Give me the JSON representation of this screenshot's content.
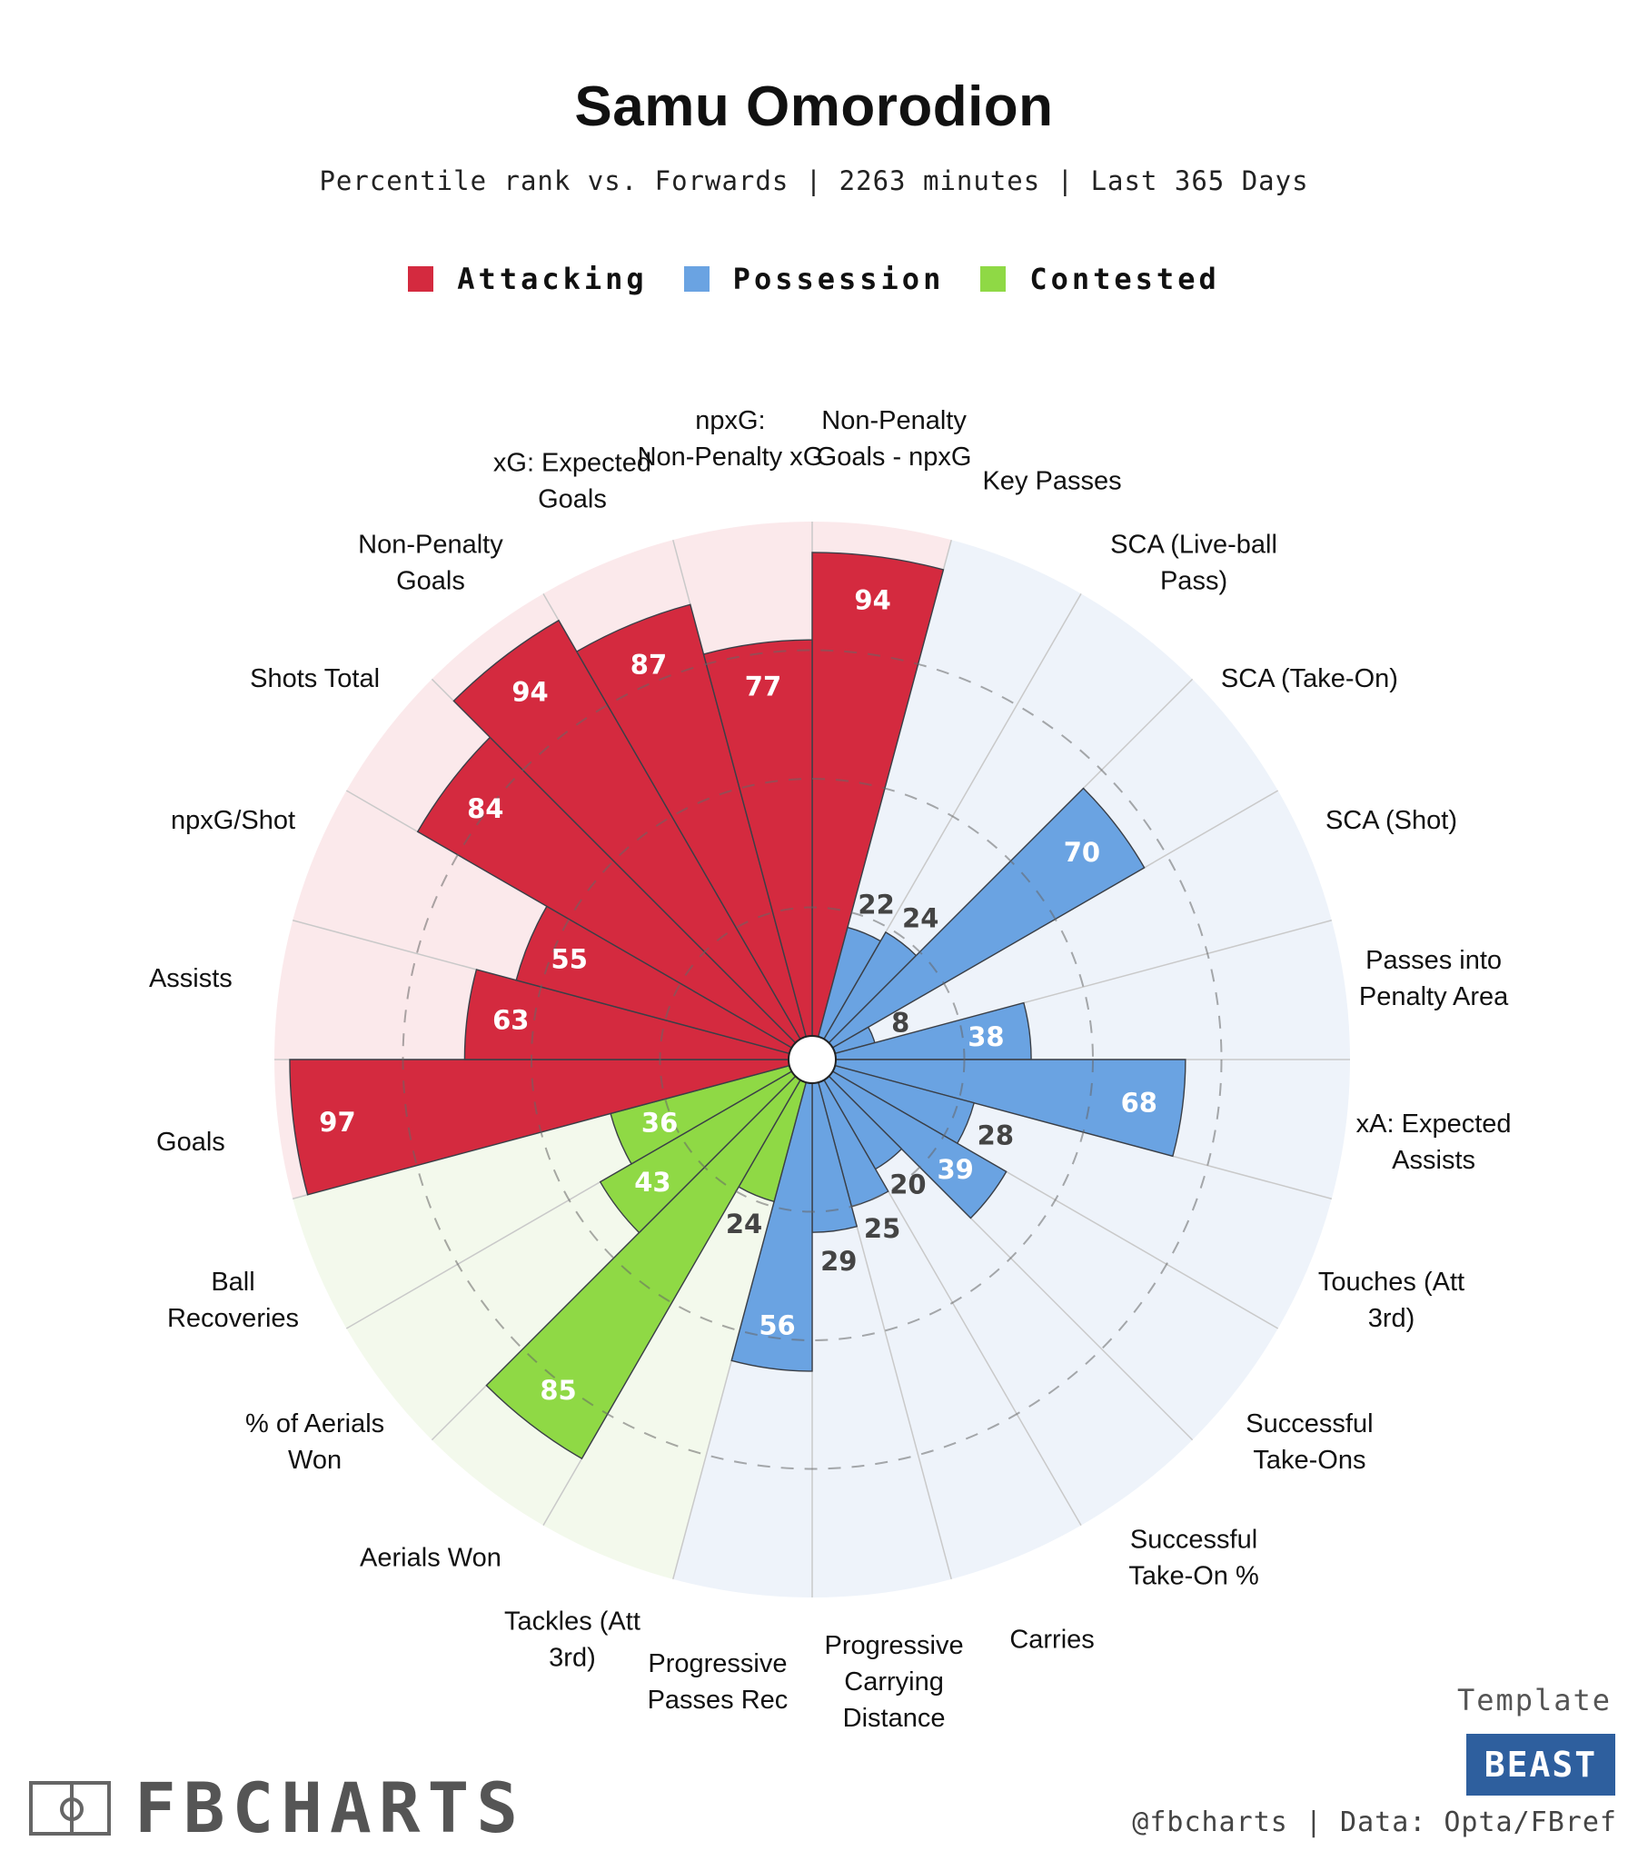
{
  "title": "Samu Omorodion",
  "subtitle": "Percentile rank vs. Forwards | 2263 minutes | Last 365 Days",
  "legend": [
    {
      "label": "Attacking",
      "color": "#d42a3f"
    },
    {
      "label": "Possession",
      "color": "#6aa3e2"
    },
    {
      "label": "Contested",
      "color": "#8fd945"
    }
  ],
  "chart_data": {
    "type": "polar-bar",
    "title": "Samu Omorodion",
    "range": [
      0,
      100
    ],
    "groups": {
      "Attacking": {
        "fill": "#d42a3f",
        "background": "#fbe9eb"
      },
      "Possession": {
        "fill": "#6aa3e2",
        "background": "#eef3fa"
      },
      "Contested": {
        "fill": "#8fd945",
        "background": "#f3f9ec"
      }
    },
    "categories": [
      "Non-Penalty Goals - npxG",
      "Key Passes",
      "SCA (Live-ball Pass)",
      "SCA (Take-On)",
      "SCA (Shot)",
      "Passes into Penalty Area",
      "xA: Expected Assists",
      "Touches (Att 3rd)",
      "Successful Take-Ons",
      "Successful Take-On %",
      "Carries",
      "Progressive Carrying Distance",
      "Progressive Passes Rec",
      "Tackles (Att 3rd)",
      "Aerials Won",
      "% of Aerials Won",
      "Ball Recoveries",
      "Goals",
      "Assists",
      "npxG/Shot",
      "Shots Total",
      "Non-Penalty Goals",
      "xG: Expected Goals",
      "npxG: Non-Penalty xG"
    ],
    "group_of": [
      "Attacking",
      "Possession",
      "Possession",
      "Possession",
      "Possession",
      "Possession",
      "Possession",
      "Possession",
      "Possession",
      "Possession",
      "Possession",
      "Possession",
      "Possession",
      "Contested",
      "Contested",
      "Contested",
      "Contested",
      "Attacking",
      "Attacking",
      "Attacking",
      "Attacking",
      "Attacking",
      "Attacking",
      "Attacking"
    ],
    "values": [
      94,
      22,
      24,
      70,
      8,
      38,
      68,
      28,
      39,
      20,
      25,
      29,
      56,
      24,
      85,
      43,
      36,
      97,
      63,
      55,
      84,
      94,
      87,
      77
    ]
  },
  "footer": {
    "brand": "FBCHARTS",
    "template_label": "Template",
    "template_badge": "BEAST",
    "credit": "@fbcharts | Data: Opta/FBref"
  }
}
